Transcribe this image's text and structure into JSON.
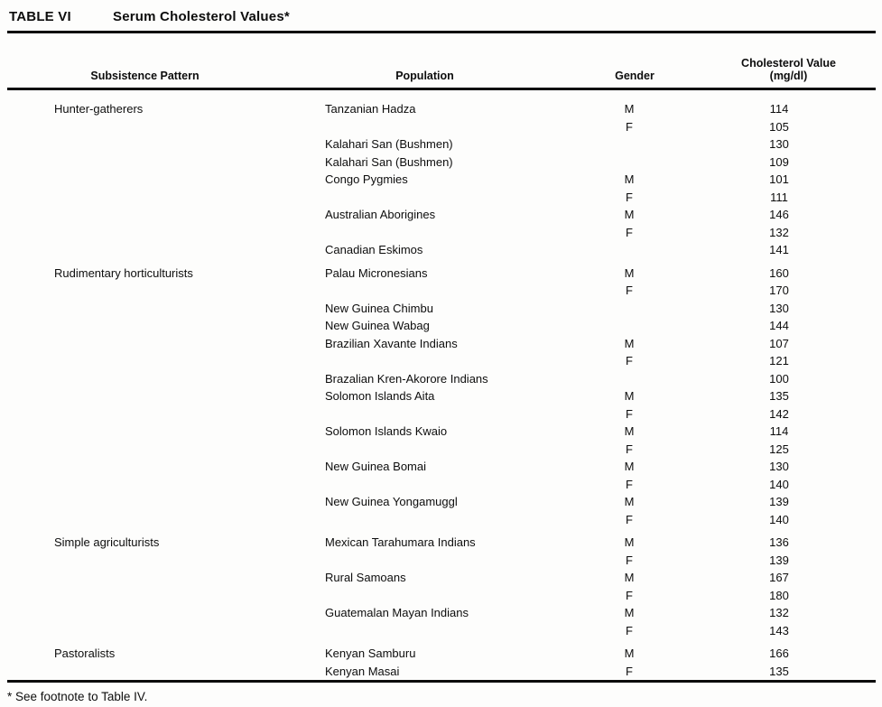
{
  "table": {
    "label": "TABLE VI",
    "title": "Serum Cholesterol Values*",
    "columns": [
      {
        "label": "Subsistence Pattern"
      },
      {
        "label": "Population"
      },
      {
        "label": "Gender"
      },
      {
        "label": "Cholesterol Value",
        "sublabel": "(mg/dl)"
      }
    ],
    "rows": [
      {
        "pattern": "Hunter-gatherers",
        "population": "Tanzanian Hadza",
        "gender": "M",
        "value": "114"
      },
      {
        "pattern": "",
        "population": "",
        "gender": "F",
        "value": "105"
      },
      {
        "pattern": "",
        "population": "Kalahari San (Bushmen)",
        "gender": "",
        "value": "130"
      },
      {
        "pattern": "",
        "population": "Kalahari San (Bushmen)",
        "gender": "",
        "value": "109"
      },
      {
        "pattern": "",
        "population": "Congo Pygmies",
        "gender": "M",
        "value": "101"
      },
      {
        "pattern": "",
        "population": "",
        "gender": "F",
        "value": "111"
      },
      {
        "pattern": "",
        "population": "Australian Aborigines",
        "gender": "M",
        "value": "146"
      },
      {
        "pattern": "",
        "population": "",
        "gender": "F",
        "value": "132"
      },
      {
        "pattern": "",
        "population": "Canadian Eskimos",
        "gender": "",
        "value": "141"
      },
      {
        "pattern": "Rudimentary horticulturists",
        "population": "Palau Micronesians",
        "gender": "M",
        "value": "160",
        "section_start": true
      },
      {
        "pattern": "",
        "population": "",
        "gender": "F",
        "value": "170"
      },
      {
        "pattern": "",
        "population": "New Guinea Chimbu",
        "gender": "",
        "value": "130"
      },
      {
        "pattern": "",
        "population": "New Guinea Wabag",
        "gender": "",
        "value": "144"
      },
      {
        "pattern": "",
        "population": "Brazilian Xavante Indians",
        "gender": "M",
        "value": "107"
      },
      {
        "pattern": "",
        "population": "",
        "gender": "F",
        "value": "121"
      },
      {
        "pattern": "",
        "population": "Brazalian Kren-Akorore Indians",
        "gender": "",
        "value": "100"
      },
      {
        "pattern": "",
        "population": "Solomon Islands Aita",
        "gender": "M",
        "value": "135"
      },
      {
        "pattern": "",
        "population": "",
        "gender": "F",
        "value": "142"
      },
      {
        "pattern": "",
        "population": "Solomon Islands Kwaio",
        "gender": "M",
        "value": "114"
      },
      {
        "pattern": "",
        "population": "",
        "gender": "F",
        "value": "125"
      },
      {
        "pattern": "",
        "population": "New Guinea Bomai",
        "gender": "M",
        "value": "130"
      },
      {
        "pattern": "",
        "population": "",
        "gender": "F",
        "value": "140"
      },
      {
        "pattern": "",
        "population": "New Guinea Yongamuggl",
        "gender": "M",
        "value": "139"
      },
      {
        "pattern": "",
        "population": "",
        "gender": "F",
        "value": "140"
      },
      {
        "pattern": "Simple agriculturists",
        "population": "Mexican Tarahumara Indians",
        "gender": "M",
        "value": "136",
        "section_start": true
      },
      {
        "pattern": "",
        "population": "",
        "gender": "F",
        "value": "139"
      },
      {
        "pattern": "",
        "population": "Rural Samoans",
        "gender": "M",
        "value": "167"
      },
      {
        "pattern": "",
        "population": "",
        "gender": "F",
        "value": "180"
      },
      {
        "pattern": "",
        "population": "Guatemalan Mayan Indians",
        "gender": "M",
        "value": "132"
      },
      {
        "pattern": "",
        "population": "",
        "gender": "F",
        "value": "143"
      },
      {
        "pattern": "Pastoralists",
        "population": "Kenyan Samburu",
        "gender": "M",
        "value": "166",
        "section_start": true
      },
      {
        "pattern": "",
        "population": "Kenyan Masai",
        "gender": "F",
        "value": "135"
      }
    ],
    "footnote": "* See footnote to Table IV."
  }
}
